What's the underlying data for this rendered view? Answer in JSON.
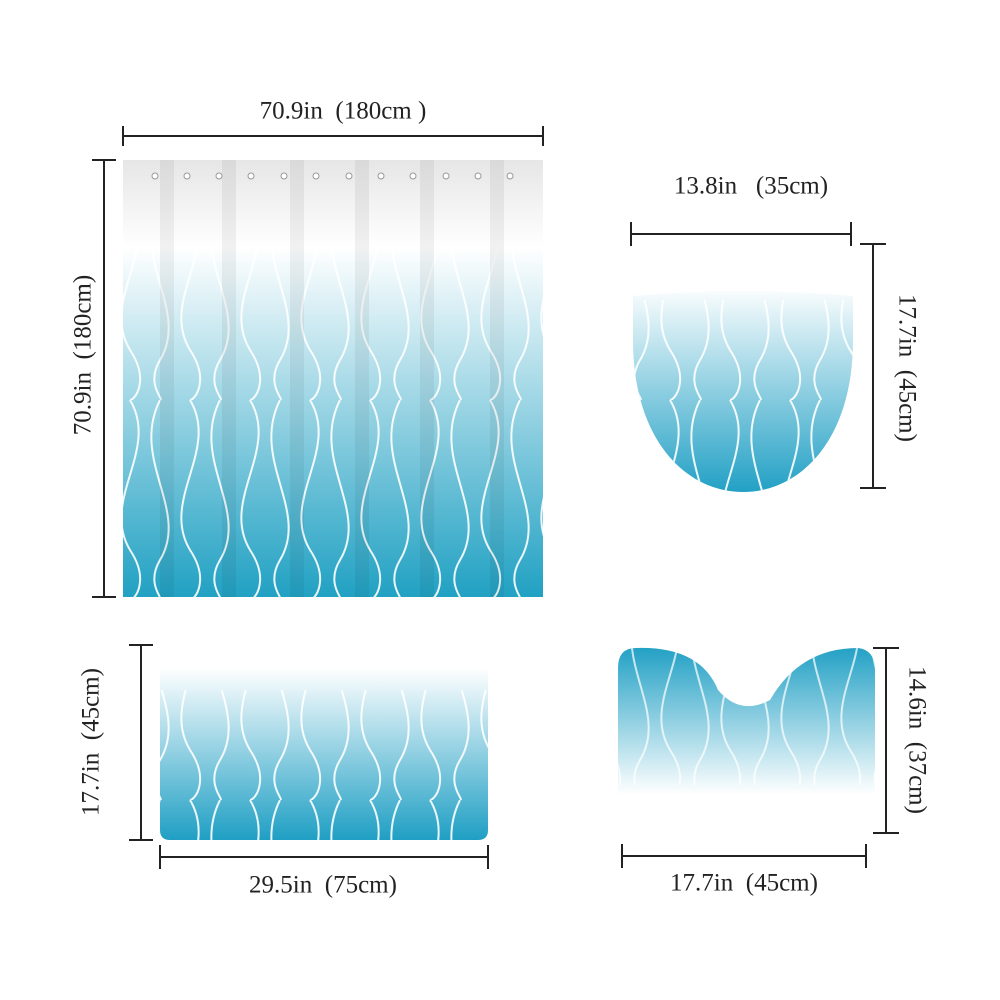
{
  "shower_curtain": {
    "width_label": "70.9in  (180cm )",
    "height_label": "70.9in  (180cm)"
  },
  "lid_cover": {
    "width_label": "13.8in   (35cm)",
    "height_label": "17.7in  (45cm)"
  },
  "bath_mat": {
    "width_label": "29.5in  (75cm)",
    "height_label": "17.7in  (45cm)"
  },
  "contour_mat": {
    "width_label": "17.7in  (45cm)",
    "height_label": "14.6in  (37cm)"
  }
}
